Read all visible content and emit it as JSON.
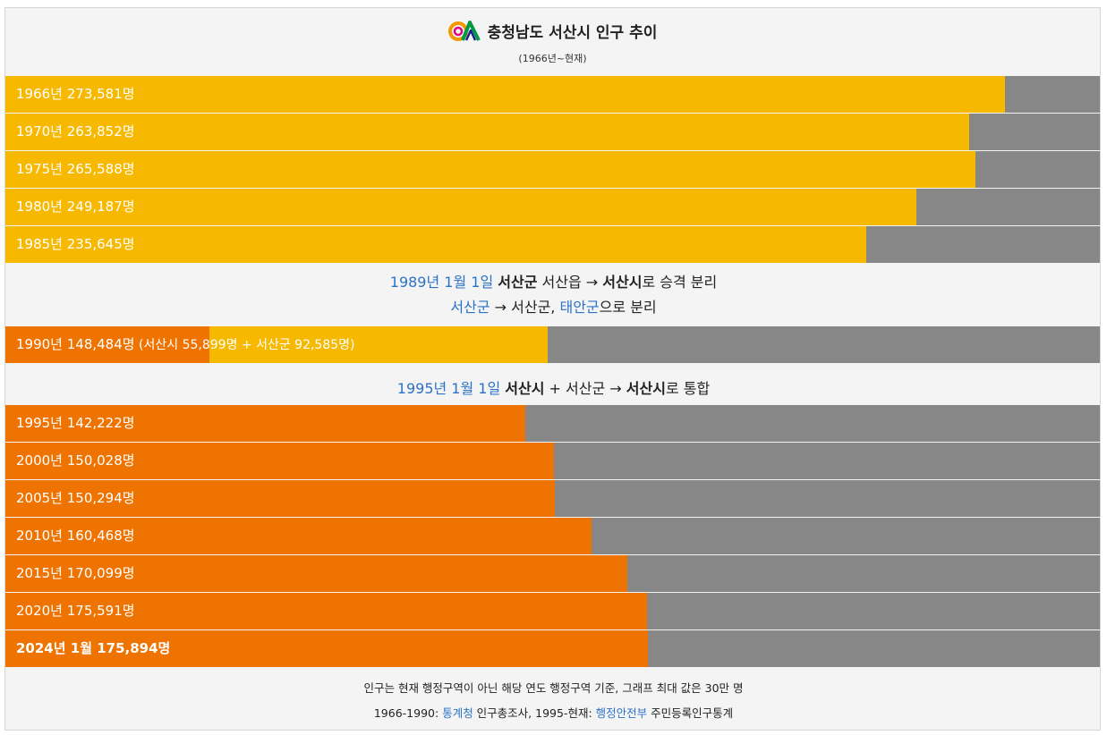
{
  "header": {
    "title": "충청남도 서산시 인구 추이",
    "subtitle": "(1966년~현재)"
  },
  "colors": {
    "pre1995": "#f7b800",
    "post1995": "#ef7300",
    "remainder": "#878787",
    "link": "#2c73c8"
  },
  "chart_data": {
    "type": "bar",
    "orientation": "horizontal",
    "xlim": [
      0,
      300000
    ],
    "unit": "명",
    "categories": [
      "1966년",
      "1970년",
      "1975년",
      "1980년",
      "1985년",
      "1990년",
      "1995년",
      "2000년",
      "2005년",
      "2010년",
      "2015년",
      "2020년",
      "2024년 1월"
    ],
    "values": [
      273581,
      263852,
      265588,
      249187,
      235645,
      148484,
      142222,
      150028,
      150294,
      160468,
      170099,
      175591,
      175894
    ],
    "labels": [
      "1966년 273,581명",
      "1970년 263,852명",
      "1975년 265,588명",
      "1980년 249,187명",
      "1985년 235,645명",
      "1990년 148,484명",
      "1995년 142,222명",
      "2000년 150,028명",
      "2005년 150,294명",
      "2010년 160,468명",
      "2015년 170,099명",
      "2020년 175,591명",
      "2024년 1월 175,894명"
    ],
    "breakdown_1990": {
      "label": "(서산시 55,899명 + 서산군 92,585명)",
      "parts": [
        {
          "name": "서산시",
          "value": 55899
        },
        {
          "name": "서산군",
          "value": 92585
        }
      ]
    }
  },
  "notes": {
    "split": {
      "date": "1989년 1월 1일",
      "old_county": "서산군",
      "town": " 서산읍 → ",
      "new_city": "서산시",
      "tail": "로 승격 분리",
      "line2_county": "서산군",
      "line2_mid": " → 서산군, ",
      "line2_new": "태안군",
      "line2_tail": "으로 분리"
    },
    "merge": {
      "date": "1995년 1월 1일",
      "city": "서산시",
      "mid": " + 서산군 → ",
      "result": "서산시",
      "tail": "로 통합"
    }
  },
  "footer": {
    "line1": "인구는 현재 행정구역이 아닌 해당 연도 행정구역 기준, 그래프 최대 값은 30만 명",
    "line2_prefix": "1966-1990: ",
    "line2_src1": "통계청",
    "line2_mid": " 인구총조사, 1995-현재: ",
    "line2_src2": "행정안전부",
    "line2_tail": " 주민등록인구통계"
  }
}
